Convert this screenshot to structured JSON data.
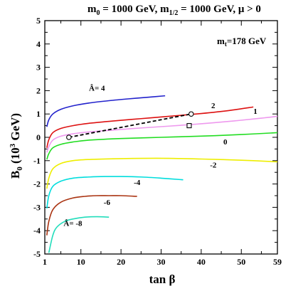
{
  "chart_data": {
    "type": "line",
    "title": "m0 = 1000 GeV, m1/2 = 1000 GeV, μ > 0",
    "title_parts": {
      "m0": "m",
      "m0_sub": "0",
      "m0_val": " = 1000 GeV, ",
      "m12": "m",
      "m12_sub": "1/2",
      "m12_val": " = 1000 GeV, μ > 0"
    },
    "annotation_mt": "m",
    "annotation_mt_sub": "t",
    "annotation_mt_val": "=178 GeV",
    "xlabel": "tan β",
    "ylabel": {
      "base": "B",
      "sub": "0",
      "open": " (10",
      "sup": "3",
      "close": " GeV)"
    },
    "xlim": [
      1,
      59
    ],
    "ylim": [
      -5,
      5
    ],
    "xticks": [
      "1",
      "10",
      "20",
      "30",
      "40",
      "50",
      "59"
    ],
    "xtick_values": [
      1,
      10,
      20,
      30,
      40,
      50,
      59
    ],
    "yticks": [
      "5",
      "4",
      "3",
      "2",
      "1",
      "0",
      "-1",
      "-2",
      "-3",
      "-4",
      "-5"
    ],
    "ytick_values": [
      5,
      4,
      3,
      2,
      1,
      0,
      -1,
      -2,
      -3,
      -4,
      -5
    ],
    "series": [
      {
        "name": "Â= 4",
        "color": "#2222cc",
        "x": [
          1.5,
          2,
          3,
          5,
          8,
          12,
          17,
          22,
          27,
          31
        ],
        "y": [
          0.45,
          0.75,
          1.0,
          1.2,
          1.35,
          1.47,
          1.57,
          1.65,
          1.72,
          1.78
        ]
      },
      {
        "name": "2",
        "color": "#dd1111",
        "x": [
          1.5,
          2,
          3,
          5,
          8,
          12,
          18,
          25,
          32,
          40,
          47,
          53
        ],
        "y": [
          -0.45,
          -0.1,
          0.2,
          0.38,
          0.5,
          0.6,
          0.7,
          0.8,
          0.9,
          1.02,
          1.15,
          1.3
        ]
      },
      {
        "name": "1",
        "color": "#ee99ee",
        "x": [
          1.5,
          2,
          3,
          5,
          8,
          12,
          18,
          25,
          32,
          40,
          48,
          55,
          59
        ],
        "y": [
          -0.65,
          -0.4,
          -0.12,
          0.05,
          0.15,
          0.23,
          0.31,
          0.4,
          0.48,
          0.58,
          0.7,
          0.82,
          0.9
        ]
      },
      {
        "name": "0",
        "color": "#22dd22",
        "x": [
          1.5,
          2,
          3,
          5,
          8,
          12,
          20,
          30,
          40,
          50,
          59
        ],
        "y": [
          -0.95,
          -0.7,
          -0.45,
          -0.3,
          -0.2,
          -0.12,
          -0.05,
          0.0,
          0.05,
          0.12,
          0.2
        ]
      },
      {
        "name": "-2",
        "color": "#eeee00",
        "x": [
          1.5,
          2,
          3,
          5,
          8,
          12,
          18,
          25,
          32,
          40,
          50,
          59
        ],
        "y": [
          -2.2,
          -1.75,
          -1.35,
          -1.12,
          -1.0,
          -0.95,
          -0.92,
          -0.9,
          -0.9,
          -0.93,
          -0.98,
          -1.05
        ]
      },
      {
        "name": "-4",
        "color": "#00dddd",
        "x": [
          1.5,
          2,
          3,
          5,
          8,
          12,
          16,
          20,
          25,
          30,
          35.5
        ],
        "y": [
          -3.05,
          -2.5,
          -2.1,
          -1.88,
          -1.75,
          -1.7,
          -1.68,
          -1.68,
          -1.7,
          -1.75,
          -1.82
        ]
      },
      {
        "name": "-6",
        "color": "#aa3311",
        "x": [
          1.5,
          2,
          3,
          5,
          8,
          11,
          14,
          17,
          20,
          24
        ],
        "y": [
          -4.2,
          -3.6,
          -3.1,
          -2.78,
          -2.6,
          -2.53,
          -2.5,
          -2.5,
          -2.5,
          -2.53
        ]
      },
      {
        "name": "Â= -8",
        "color": "#22ddbb",
        "x": [
          2,
          3,
          4,
          6,
          8,
          11,
          14,
          17
        ],
        "y": [
          -4.95,
          -4.2,
          -3.85,
          -3.6,
          -3.5,
          -3.42,
          -3.4,
          -3.42
        ]
      },
      {
        "name": "",
        "color": "#000000",
        "dashed": true,
        "x": [
          7,
          37.5
        ],
        "y": [
          0.0,
          1.0
        ]
      }
    ],
    "markers": [
      {
        "shape": "circle",
        "x": 7,
        "y": 0.0
      },
      {
        "shape": "circle",
        "x": 37.5,
        "y": 1.0
      },
      {
        "shape": "square",
        "x": 37,
        "y": 0.5
      }
    ],
    "curve_labels": [
      {
        "text": "Â= 4",
        "x": 14,
        "y": 2.0
      },
      {
        "text": "2",
        "x": 43,
        "y": 1.25
      },
      {
        "text": "1",
        "x": 53.5,
        "y": 1.0
      },
      {
        "text": "0",
        "x": 46,
        "y": -0.3
      },
      {
        "text": "-2",
        "x": 43,
        "y": -1.3
      },
      {
        "text": "-4",
        "x": 24,
        "y": -2.05
      },
      {
        "text": "-6",
        "x": 16.5,
        "y": -2.9
      },
      {
        "text": "Â= -8",
        "x": 8,
        "y": -3.8
      }
    ]
  }
}
